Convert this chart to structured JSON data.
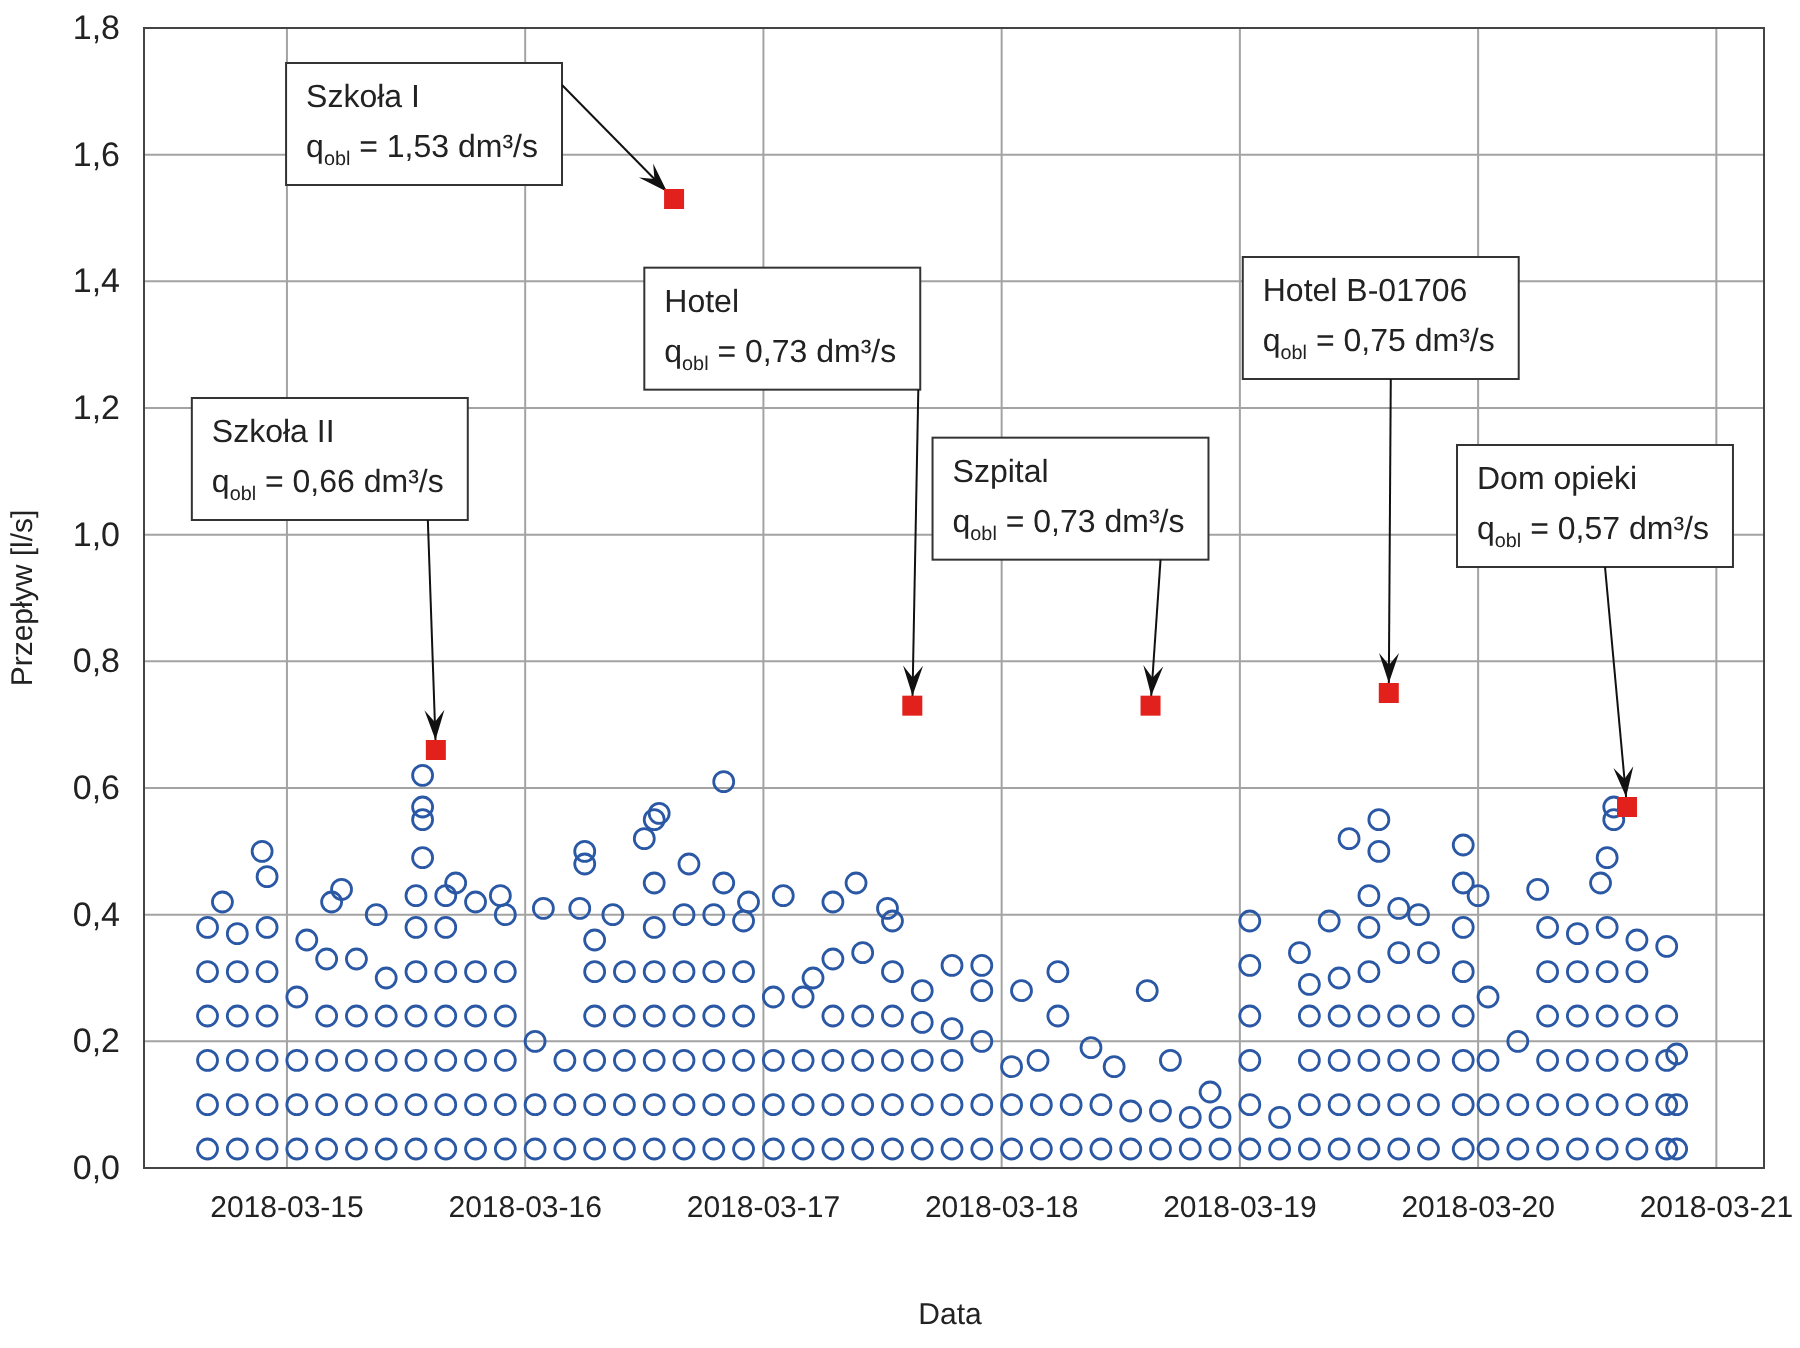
{
  "chart_data": {
    "type": "scatter",
    "xlabel": "Data",
    "ylabel": "Przepływ [l/s]",
    "xlim": [
      "2018-03-14T09:36",
      "2018-03-21T04:48"
    ],
    "xticks": [
      "2018-03-15",
      "2018-03-16",
      "2018-03-17",
      "2018-03-18",
      "2018-03-19",
      "2018-03-20",
      "2018-03-21"
    ],
    "ylim": [
      0,
      1.8
    ],
    "yticks": [
      {
        "value": 0,
        "label": "0,0"
      },
      {
        "value": 0.2,
        "label": "0,2"
      },
      {
        "value": 0.4,
        "label": "0,4"
      },
      {
        "value": 0.6,
        "label": "0,6"
      },
      {
        "value": 0.8,
        "label": "0,8"
      },
      {
        "value": 1.0,
        "label": "1,0"
      },
      {
        "value": 1.2,
        "label": "1,2"
      },
      {
        "value": 1.4,
        "label": "1,4"
      },
      {
        "value": 1.6,
        "label": "1,6"
      },
      {
        "value": 1.8,
        "label": "1,8"
      }
    ],
    "grid": true,
    "series": [
      {
        "color": "#2b58a5",
        "marker": "circle",
        "x": [
          "2018-03-14T16:00",
          "2018-03-14T16:00",
          "2018-03-14T16:00",
          "2018-03-14T16:00",
          "2018-03-14T16:00",
          "2018-03-14T16:00",
          "2018-03-14T17:30",
          "2018-03-14T19:00",
          "2018-03-14T19:00",
          "2018-03-14T19:00",
          "2018-03-14T19:00",
          "2018-03-14T19:00",
          "2018-03-14T19:00",
          "2018-03-14T21:30",
          "2018-03-14T22:00",
          "2018-03-14T22:00",
          "2018-03-14T22:00",
          "2018-03-14T22:00",
          "2018-03-14T22:00",
          "2018-03-14T22:00",
          "2018-03-14T22:00",
          "2018-03-15T01:00",
          "2018-03-15T01:00",
          "2018-03-15T01:00",
          "2018-03-15T01:00",
          "2018-03-15T02:00",
          "2018-03-15T04:00",
          "2018-03-15T04:00",
          "2018-03-15T04:00",
          "2018-03-15T04:00",
          "2018-03-15T04:00",
          "2018-03-15T04:30",
          "2018-03-15T05:30",
          "2018-03-15T07:00",
          "2018-03-15T07:00",
          "2018-03-15T07:00",
          "2018-03-15T07:00",
          "2018-03-15T07:00",
          "2018-03-15T09:00",
          "2018-03-15T10:00",
          "2018-03-15T10:00",
          "2018-03-15T10:00",
          "2018-03-15T10:00",
          "2018-03-15T10:00",
          "2018-03-15T13:00",
          "2018-03-15T13:00",
          "2018-03-15T13:00",
          "2018-03-15T13:00",
          "2018-03-15T13:00",
          "2018-03-15T13:00",
          "2018-03-15T13:00",
          "2018-03-15T13:40",
          "2018-03-15T13:40",
          "2018-03-15T13:40",
          "2018-03-15T13:40",
          "2018-03-15T16:00",
          "2018-03-15T16:00",
          "2018-03-15T16:00",
          "2018-03-15T16:00",
          "2018-03-15T16:00",
          "2018-03-15T16:00",
          "2018-03-15T16:00",
          "2018-03-15T17:00",
          "2018-03-15T19:00",
          "2018-03-15T19:00",
          "2018-03-15T19:00",
          "2018-03-15T19:00",
          "2018-03-15T19:00",
          "2018-03-15T19:00",
          "2018-03-15T21:30",
          "2018-03-15T22:00",
          "2018-03-15T22:00",
          "2018-03-15T22:00",
          "2018-03-15T22:00",
          "2018-03-15T22:00",
          "2018-03-15T22:00",
          "2018-03-16T01:00",
          "2018-03-16T01:00",
          "2018-03-16T01:00",
          "2018-03-16T01:50",
          "2018-03-16T04:00",
          "2018-03-16T04:00",
          "2018-03-16T04:00",
          "2018-03-16T05:30",
          "2018-03-16T06:00",
          "2018-03-16T06:00",
          "2018-03-16T07:00",
          "2018-03-16T07:00",
          "2018-03-16T07:00",
          "2018-03-16T07:00",
          "2018-03-16T07:00",
          "2018-03-16T07:00",
          "2018-03-16T08:50",
          "2018-03-16T10:00",
          "2018-03-16T10:00",
          "2018-03-16T10:00",
          "2018-03-16T10:00",
          "2018-03-16T10:00",
          "2018-03-16T12:00",
          "2018-03-16T13:00",
          "2018-03-16T13:00",
          "2018-03-16T13:00",
          "2018-03-16T13:00",
          "2018-03-16T13:00",
          "2018-03-16T13:00",
          "2018-03-16T13:00",
          "2018-03-16T13:00",
          "2018-03-16T13:30",
          "2018-03-16T16:00",
          "2018-03-16T16:00",
          "2018-03-16T16:00",
          "2018-03-16T16:00",
          "2018-03-16T16:00",
          "2018-03-16T16:00",
          "2018-03-16T16:30",
          "2018-03-16T19:00",
          "2018-03-16T19:00",
          "2018-03-16T19:00",
          "2018-03-16T19:00",
          "2018-03-16T19:00",
          "2018-03-16T19:00",
          "2018-03-16T20:00",
          "2018-03-16T20:00",
          "2018-03-16T22:00",
          "2018-03-16T22:00",
          "2018-03-16T22:00",
          "2018-03-16T22:00",
          "2018-03-16T22:00",
          "2018-03-16T22:00",
          "2018-03-16T22:30",
          "2018-03-17T01:00",
          "2018-03-17T01:00",
          "2018-03-17T01:00",
          "2018-03-17T01:00",
          "2018-03-17T02:00",
          "2018-03-17T04:00",
          "2018-03-17T04:00",
          "2018-03-17T04:00",
          "2018-03-17T04:00",
          "2018-03-17T05:00",
          "2018-03-17T07:00",
          "2018-03-17T07:00",
          "2018-03-17T07:00",
          "2018-03-17T07:00",
          "2018-03-17T07:00",
          "2018-03-17T07:00",
          "2018-03-17T09:20",
          "2018-03-17T10:00",
          "2018-03-17T10:00",
          "2018-03-17T10:00",
          "2018-03-17T10:00",
          "2018-03-17T10:00",
          "2018-03-17T12:30",
          "2018-03-17T13:00",
          "2018-03-17T13:00",
          "2018-03-17T13:00",
          "2018-03-17T13:00",
          "2018-03-17T13:00",
          "2018-03-17T13:00",
          "2018-03-17T16:00",
          "2018-03-17T16:00",
          "2018-03-17T16:00",
          "2018-03-17T16:00",
          "2018-03-17T16:00",
          "2018-03-17T19:00",
          "2018-03-17T19:00",
          "2018-03-17T19:00",
          "2018-03-17T19:00",
          "2018-03-17T19:00",
          "2018-03-17T22:00",
          "2018-03-17T22:00",
          "2018-03-17T22:00",
          "2018-03-17T22:00",
          "2018-03-17T22:00",
          "2018-03-18T01:00",
          "2018-03-18T01:00",
          "2018-03-18T01:00",
          "2018-03-18T02:00",
          "2018-03-18T03:40",
          "2018-03-18T04:00",
          "2018-03-18T04:00",
          "2018-03-18T05:40",
          "2018-03-18T05:40",
          "2018-03-18T07:00",
          "2018-03-18T07:00",
          "2018-03-18T09:00",
          "2018-03-18T10:00",
          "2018-03-18T10:00",
          "2018-03-18T11:20",
          "2018-03-18T13:00",
          "2018-03-18T13:00",
          "2018-03-18T14:40",
          "2018-03-18T16:00",
          "2018-03-18T16:00",
          "2018-03-18T17:00",
          "2018-03-18T19:00",
          "2018-03-18T19:00",
          "2018-03-18T21:00",
          "2018-03-18T22:00",
          "2018-03-18T22:00",
          "2018-03-19T01:00",
          "2018-03-19T01:00",
          "2018-03-19T01:00",
          "2018-03-19T01:00",
          "2018-03-19T01:00",
          "2018-03-19T01:00",
          "2018-03-19T04:00",
          "2018-03-19T04:00",
          "2018-03-19T06:00",
          "2018-03-19T07:00",
          "2018-03-19T07:00",
          "2018-03-19T07:00",
          "2018-03-19T07:00",
          "2018-03-19T07:00",
          "2018-03-19T09:00",
          "2018-03-19T10:00",
          "2018-03-19T10:00",
          "2018-03-19T10:00",
          "2018-03-19T10:00",
          "2018-03-19T10:00",
          "2018-03-19T11:00",
          "2018-03-19T13:00",
          "2018-03-19T13:00",
          "2018-03-19T13:00",
          "2018-03-19T13:00",
          "2018-03-19T13:00",
          "2018-03-19T13:00",
          "2018-03-19T13:00",
          "2018-03-19T14:00",
          "2018-03-19T14:00",
          "2018-03-19T16:00",
          "2018-03-19T16:00",
          "2018-03-19T16:00",
          "2018-03-19T16:00",
          "2018-03-19T16:00",
          "2018-03-19T16:00",
          "2018-03-19T18:00",
          "2018-03-19T19:00",
          "2018-03-19T19:00",
          "2018-03-19T19:00",
          "2018-03-19T19:00",
          "2018-03-19T19:00",
          "2018-03-19T22:30",
          "2018-03-19T22:30",
          "2018-03-19T22:30",
          "2018-03-19T22:30",
          "2018-03-19T22:30",
          "2018-03-19T22:30",
          "2018-03-19T22:30",
          "2018-03-19T22:30",
          "2018-03-20T00:00",
          "2018-03-20T01:00",
          "2018-03-20T01:00",
          "2018-03-20T01:00",
          "2018-03-20T01:00",
          "2018-03-20T04:00",
          "2018-03-20T04:00",
          "2018-03-20T04:00",
          "2018-03-20T06:00",
          "2018-03-20T07:00",
          "2018-03-20T07:00",
          "2018-03-20T07:00",
          "2018-03-20T07:00",
          "2018-03-20T07:00",
          "2018-03-20T07:00",
          "2018-03-20T10:00",
          "2018-03-20T10:00",
          "2018-03-20T10:00",
          "2018-03-20T10:00",
          "2018-03-20T10:00",
          "2018-03-20T10:00",
          "2018-03-20T12:20",
          "2018-03-20T13:00",
          "2018-03-20T13:00",
          "2018-03-20T13:00",
          "2018-03-20T13:00",
          "2018-03-20T13:00",
          "2018-03-20T13:00",
          "2018-03-20T13:00",
          "2018-03-20T13:40",
          "2018-03-20T13:40",
          "2018-03-20T16:00",
          "2018-03-20T16:00",
          "2018-03-20T16:00",
          "2018-03-20T16:00",
          "2018-03-20T16:00",
          "2018-03-20T16:00",
          "2018-03-20T19:00",
          "2018-03-20T19:00",
          "2018-03-20T19:00",
          "2018-03-20T19:00",
          "2018-03-20T19:00",
          "2018-03-20T20:00",
          "2018-03-20T20:00",
          "2018-03-20T20:00"
        ],
        "values": [
          0.03,
          0.1,
          0.17,
          0.24,
          0.31,
          0.38,
          0.42,
          0.03,
          0.1,
          0.17,
          0.24,
          0.31,
          0.37,
          0.5,
          0.03,
          0.1,
          0.17,
          0.24,
          0.31,
          0.38,
          0.46,
          0.03,
          0.1,
          0.17,
          0.27,
          0.36,
          0.03,
          0.1,
          0.17,
          0.24,
          0.33,
          0.42,
          0.44,
          0.03,
          0.1,
          0.17,
          0.24,
          0.33,
          0.4,
          0.03,
          0.1,
          0.17,
          0.24,
          0.3,
          0.03,
          0.1,
          0.17,
          0.24,
          0.31,
          0.38,
          0.43,
          0.49,
          0.55,
          0.57,
          0.62,
          0.03,
          0.1,
          0.17,
          0.24,
          0.31,
          0.38,
          0.43,
          0.45,
          0.03,
          0.1,
          0.17,
          0.24,
          0.31,
          0.42,
          0.43,
          0.03,
          0.1,
          0.17,
          0.24,
          0.31,
          0.4,
          0.03,
          0.1,
          0.2,
          0.41,
          0.03,
          0.1,
          0.17,
          0.41,
          0.48,
          0.5,
          0.03,
          0.1,
          0.17,
          0.24,
          0.31,
          0.36,
          0.4,
          0.03,
          0.1,
          0.17,
          0.24,
          0.31,
          0.52,
          0.03,
          0.1,
          0.17,
          0.24,
          0.31,
          0.38,
          0.45,
          0.55,
          0.56,
          0.03,
          0.1,
          0.17,
          0.24,
          0.31,
          0.4,
          0.48,
          0.03,
          0.1,
          0.17,
          0.24,
          0.31,
          0.4,
          0.45,
          0.61,
          0.03,
          0.1,
          0.17,
          0.24,
          0.31,
          0.39,
          0.42,
          0.03,
          0.1,
          0.17,
          0.27,
          0.43,
          0.03,
          0.1,
          0.17,
          0.27,
          0.3,
          0.03,
          0.1,
          0.17,
          0.24,
          0.33,
          0.42,
          0.45,
          0.03,
          0.1,
          0.17,
          0.24,
          0.34,
          0.41,
          0.03,
          0.1,
          0.17,
          0.24,
          0.31,
          0.39,
          0.03,
          0.1,
          0.17,
          0.23,
          0.28,
          0.03,
          0.1,
          0.17,
          0.22,
          0.32,
          0.03,
          0.1,
          0.2,
          0.28,
          0.32,
          0.03,
          0.1,
          0.16,
          0.28,
          0.17,
          0.03,
          0.1,
          0.24,
          0.31,
          0.03,
          0.1,
          0.19,
          0.03,
          0.1,
          0.16,
          0.03,
          0.09,
          0.28,
          0.03,
          0.09,
          0.17,
          0.03,
          0.08,
          0.12,
          0.03,
          0.08,
          0.03,
          0.1,
          0.17,
          0.24,
          0.32,
          0.39,
          0.03,
          0.08,
          0.34,
          0.03,
          0.1,
          0.17,
          0.24,
          0.29,
          0.39,
          0.03,
          0.1,
          0.17,
          0.24,
          0.3,
          0.52,
          0.03,
          0.1,
          0.17,
          0.24,
          0.31,
          0.38,
          0.43,
          0.5,
          0.55,
          0.03,
          0.1,
          0.17,
          0.24,
          0.34,
          0.41,
          0.4,
          0.03,
          0.1,
          0.17,
          0.24,
          0.34,
          0.03,
          0.1,
          0.17,
          0.24,
          0.31,
          0.38,
          0.45,
          0.51,
          0.43,
          0.03,
          0.1,
          0.17,
          0.27,
          0.03,
          0.1,
          0.2,
          0.44,
          0.03,
          0.1,
          0.17,
          0.24,
          0.31,
          0.38,
          0.03,
          0.1,
          0.17,
          0.24,
          0.31,
          0.37,
          0.45,
          0.03,
          0.1,
          0.17,
          0.24,
          0.31,
          0.38,
          0.49,
          0.55,
          0.57,
          0.03,
          0.1,
          0.17,
          0.24,
          0.31,
          0.36,
          0.03,
          0.1,
          0.17,
          0.24,
          0.35,
          0.03,
          0.1,
          0.18
        ]
      },
      {
        "color": "#e2211c",
        "marker": "square",
        "x": [
          "2018-03-15T15:00",
          "2018-03-16T15:00",
          "2018-03-17T15:00",
          "2018-03-18T15:00",
          "2018-03-19T15:00",
          "2018-03-20T15:00"
        ],
        "values": [
          0.66,
          1.53,
          0.73,
          0.73,
          0.75,
          0.57
        ]
      }
    ],
    "annotations": [
      {
        "text": "Szkoła I\nq$_{obl}$ = 1,53 dm³/s",
        "x": "2018-03-16T15:00",
        "y": 1.53
      },
      {
        "text": "Szkoła II\nq$_{obl}$ = 0,66 dm³/s",
        "x": "2018-03-15T15:00",
        "y": 0.66
      },
      {
        "text": "Hotel\nq$_{obl}$ = 0,73 dm³/s",
        "x": "2018-03-17T15:00",
        "y": 0.73
      },
      {
        "text": "Szpital\nq$_{obl}$ = 0,73 dm³/s",
        "x": "2018-03-18T15:00",
        "y": 0.73
      },
      {
        "text": "Hotel B-01706\nq$_{obl}$ = 0,75 dm³/s",
        "x": "2018-03-19T15:00",
        "y": 0.75
      },
      {
        "text": "Dom opieki\nq$_{obl}$ = 0,57 dm³/s",
        "x": "2018-03-20T15:00",
        "y": 0.57
      }
    ]
  }
}
